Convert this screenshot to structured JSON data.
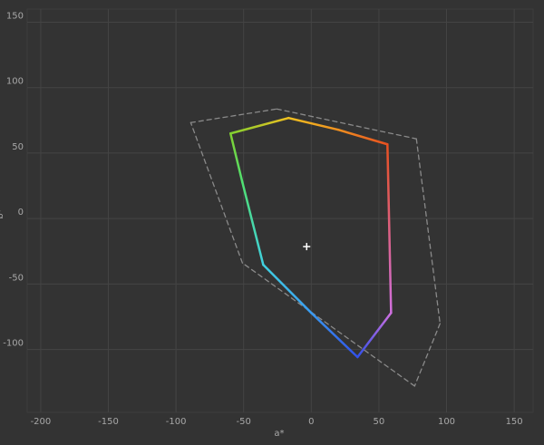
{
  "chart_data": {
    "type": "line",
    "x_label": "a*",
    "y_label": "b*",
    "xlim": [
      -210,
      164
    ],
    "ylim": [
      -148,
      160
    ],
    "xticks": [
      -200,
      -150,
      -100,
      -50,
      0,
      50,
      100,
      150
    ],
    "yticks": [
      -100,
      -50,
      0,
      50,
      100,
      150
    ],
    "grid": true,
    "series": [
      {
        "x": [
          -89.1,
          -25.5,
          77.7,
          95.2,
          76.4,
          -50.9
        ],
        "values": [
          73.3,
          83.7,
          60.9,
          -80.2,
          -127.9,
          -33.9
        ],
        "color": "#8a8a8a",
        "dashed": true,
        "closed": true
      },
      {
        "x": [
          -16.8,
          -59.7,
          -51,
          -35.5,
          0,
          34.2,
          59,
          56.3,
          20
        ],
        "values": [
          76.8,
          65,
          28,
          -35.3,
          -72,
          -105.8,
          -72,
          56.7,
          67.8
        ],
        "colors": [
          "#f0c020",
          "#80d030",
          "#50e070",
          "#40d0e0",
          "#3a9af0",
          "#3050e8",
          "#d070e0",
          "#e85020",
          "#f09020"
        ],
        "dashed": false,
        "closed": true
      }
    ],
    "white_point": {
      "x": -3.4,
      "y": -21.4,
      "color": "#ffffff"
    }
  }
}
